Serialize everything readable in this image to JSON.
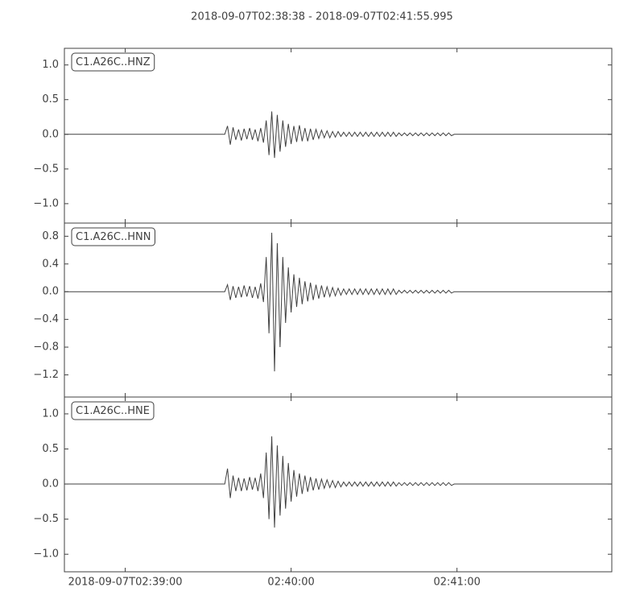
{
  "title": "2018-09-07T02:38:38  -  2018-09-07T02:41:55.995",
  "chart_data": [
    {
      "type": "line",
      "label": "C1.A26C..HNZ",
      "color": "#404040",
      "xlim": [
        0,
        197.995
      ],
      "ylim": [
        -1.28,
        1.24
      ],
      "yticks": [
        {
          "value": 1.0,
          "label": "1.0"
        },
        {
          "value": 0.5,
          "label": "0.5"
        },
        {
          "value": 0,
          "label": "0.0"
        },
        {
          "value": -0.5,
          "label": "−0.5"
        },
        {
          "value": -1.0,
          "label": "−1.0"
        }
      ],
      "x": [
        0,
        58,
        59,
        60,
        61,
        62,
        63,
        64,
        65,
        66,
        67,
        68,
        69,
        70,
        71,
        72,
        73,
        74,
        75,
        76,
        77,
        78,
        79,
        80,
        81,
        82,
        83,
        84,
        85,
        86,
        87,
        88,
        89,
        90,
        91,
        92,
        93,
        94,
        95,
        96,
        97,
        98,
        99,
        100,
        101,
        102,
        103,
        104,
        105,
        106,
        107,
        108,
        109,
        110,
        111,
        112,
        113,
        114,
        115,
        116,
        117,
        118,
        119,
        120,
        121,
        122,
        123,
        124,
        125,
        126,
        127,
        128,
        129,
        130,
        131,
        132,
        133,
        134,
        135,
        136,
        137,
        138,
        139,
        140,
        141,
        197.995
      ],
      "values": [
        0,
        0,
        0.12,
        -0.15,
        0.1,
        -0.08,
        0.07,
        -0.09,
        0.08,
        -0.07,
        0.09,
        -0.08,
        0.07,
        -0.1,
        0.09,
        -0.12,
        0.2,
        -0.3,
        0.33,
        -0.34,
        0.28,
        -0.25,
        0.2,
        -0.18,
        0.15,
        -0.14,
        0.12,
        -0.11,
        0.13,
        -0.1,
        0.09,
        -0.1,
        0.08,
        -0.08,
        0.07,
        -0.06,
        0.06,
        -0.05,
        0.05,
        -0.05,
        0.04,
        -0.04,
        0.04,
        -0.03,
        0.03,
        -0.03,
        0.03,
        -0.03,
        0.03,
        -0.03,
        0.03,
        -0.03,
        0.03,
        -0.03,
        0.03,
        -0.03,
        0.03,
        -0.03,
        0.03,
        -0.03,
        0.03,
        -0.03,
        0.03,
        -0.03,
        0.02,
        -0.02,
        0.02,
        -0.02,
        0.02,
        -0.02,
        0.02,
        -0.02,
        0.02,
        -0.02,
        0.02,
        -0.02,
        0.02,
        -0.02,
        0.02,
        -0.02,
        0.02,
        -0.02,
        0.02,
        -0.02,
        0,
        0
      ]
    },
    {
      "type": "line",
      "label": "C1.A26C..HNN",
      "color": "#404040",
      "xlim": [
        0,
        197.995
      ],
      "ylim": [
        -1.52,
        0.99
      ],
      "yticks": [
        {
          "value": 0.8,
          "label": "0.8"
        },
        {
          "value": 0.4,
          "label": "0.4"
        },
        {
          "value": 0,
          "label": "0.0"
        },
        {
          "value": -0.4,
          "label": "−0.4"
        },
        {
          "value": -0.8,
          "label": "−0.8"
        },
        {
          "value": -1.2,
          "label": "−1.2"
        }
      ],
      "x": [
        0,
        58,
        59,
        60,
        61,
        62,
        63,
        64,
        65,
        66,
        67,
        68,
        69,
        70,
        71,
        72,
        73,
        74,
        75,
        76,
        77,
        78,
        79,
        80,
        81,
        82,
        83,
        84,
        85,
        86,
        87,
        88,
        89,
        90,
        91,
        92,
        93,
        94,
        95,
        96,
        97,
        98,
        99,
        100,
        101,
        102,
        103,
        104,
        105,
        106,
        107,
        108,
        109,
        110,
        111,
        112,
        113,
        114,
        115,
        116,
        117,
        118,
        119,
        120,
        121,
        122,
        123,
        124,
        125,
        126,
        127,
        128,
        129,
        130,
        131,
        132,
        133,
        134,
        135,
        136,
        137,
        138,
        139,
        140,
        141,
        197.995
      ],
      "values": [
        0,
        0,
        0.1,
        -0.12,
        0.08,
        -0.09,
        0.07,
        -0.08,
        0.09,
        -0.07,
        0.08,
        -0.09,
        0.07,
        -0.1,
        0.12,
        -0.15,
        0.5,
        -0.6,
        0.85,
        -1.15,
        0.7,
        -0.8,
        0.5,
        -0.45,
        0.35,
        -0.3,
        0.25,
        -0.22,
        0.2,
        -0.18,
        0.15,
        -0.14,
        0.13,
        -0.12,
        0.1,
        -0.1,
        0.09,
        -0.08,
        0.07,
        -0.07,
        0.06,
        -0.06,
        0.05,
        -0.05,
        0.04,
        -0.04,
        0.04,
        -0.04,
        0.04,
        -0.04,
        0.04,
        -0.04,
        0.04,
        -0.04,
        0.04,
        -0.04,
        0.04,
        -0.04,
        0.04,
        -0.04,
        0.04,
        -0.04,
        0.04,
        -0.04,
        0.02,
        -0.02,
        0.02,
        -0.02,
        0.02,
        -0.02,
        0.02,
        -0.02,
        0.02,
        -0.02,
        0.02,
        -0.02,
        0.02,
        -0.02,
        0.02,
        -0.02,
        0.02,
        -0.02,
        0.02,
        -0.02,
        0,
        0
      ]
    },
    {
      "type": "line",
      "label": "C1.A26C..HNE",
      "color": "#404040",
      "xlim": [
        0,
        197.995
      ],
      "ylim": [
        -1.25,
        1.24
      ],
      "yticks": [
        {
          "value": 1.0,
          "label": "1.0"
        },
        {
          "value": 0.5,
          "label": "0.5"
        },
        {
          "value": 0,
          "label": "0.0"
        },
        {
          "value": -0.5,
          "label": "−0.5"
        },
        {
          "value": -1.0,
          "label": "−1.0"
        }
      ],
      "xticks": [
        {
          "value": 22,
          "label": "2018-09-07T02:39:00"
        },
        {
          "value": 82,
          "label": "02:40:00"
        },
        {
          "value": 142,
          "label": "02:41:00"
        }
      ],
      "x": [
        0,
        58,
        59,
        60,
        61,
        62,
        63,
        64,
        65,
        66,
        67,
        68,
        69,
        70,
        71,
        72,
        73,
        74,
        75,
        76,
        77,
        78,
        79,
        80,
        81,
        82,
        83,
        84,
        85,
        86,
        87,
        88,
        89,
        90,
        91,
        92,
        93,
        94,
        95,
        96,
        97,
        98,
        99,
        100,
        101,
        102,
        103,
        104,
        105,
        106,
        107,
        108,
        109,
        110,
        111,
        112,
        113,
        114,
        115,
        116,
        117,
        118,
        119,
        120,
        121,
        122,
        123,
        124,
        125,
        126,
        127,
        128,
        129,
        130,
        131,
        132,
        133,
        134,
        135,
        136,
        137,
        138,
        139,
        140,
        141,
        197.995
      ],
      "values": [
        0,
        0,
        0.22,
        -0.2,
        0.12,
        -0.1,
        0.09,
        -0.1,
        0.08,
        -0.09,
        0.1,
        -0.08,
        0.09,
        -0.1,
        0.15,
        -0.2,
        0.45,
        -0.5,
        0.68,
        -0.62,
        0.55,
        -0.45,
        0.4,
        -0.35,
        0.3,
        -0.25,
        0.2,
        -0.18,
        0.15,
        -0.14,
        0.12,
        -0.11,
        0.1,
        -0.09,
        0.08,
        -0.08,
        0.07,
        -0.06,
        0.06,
        -0.05,
        0.05,
        -0.05,
        0.04,
        -0.04,
        0.03,
        -0.03,
        0.03,
        -0.03,
        0.03,
        -0.03,
        0.03,
        -0.03,
        0.03,
        -0.03,
        0.03,
        -0.03,
        0.03,
        -0.03,
        0.03,
        -0.03,
        0.03,
        -0.03,
        0.03,
        -0.03,
        0.02,
        -0.02,
        0.02,
        -0.02,
        0.02,
        -0.02,
        0.02,
        -0.02,
        0.02,
        -0.02,
        0.02,
        -0.02,
        0.02,
        -0.02,
        0.02,
        -0.02,
        0.02,
        -0.02,
        0.02,
        -0.02,
        0,
        0
      ]
    }
  ]
}
